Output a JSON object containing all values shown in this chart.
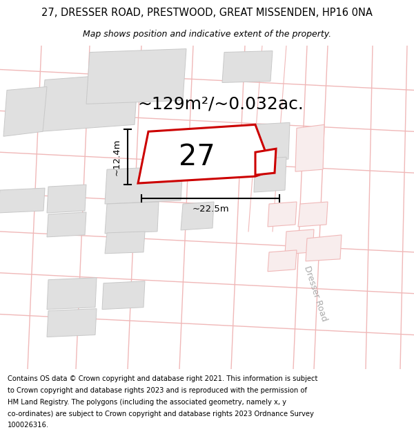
{
  "title": "27, DRESSER ROAD, PRESTWOOD, GREAT MISSENDEN, HP16 0NA",
  "subtitle": "Map shows position and indicative extent of the property.",
  "area_text": "~129m²/~0.032ac.",
  "width_label": "~22.5m",
  "height_label": "~12.4m",
  "label_number": "27",
  "road_label": "Dresser Road",
  "footer_lines": [
    "Contains OS data © Crown copyright and database right 2021. This information is subject",
    "to Crown copyright and database rights 2023 and is reproduced with the permission of",
    "HM Land Registry. The polygons (including the associated geometry, namely x, y",
    "co-ordinates) are subject to Crown copyright and database rights 2023 Ordnance Survey",
    "100026316."
  ],
  "bg_color": "#f7f7f7",
  "property_fill": "#ffffff",
  "property_edge": "#cc0000",
  "road_color": "#f0b8b8",
  "block_fill": "#e0e0e0",
  "block_edge": "#c8c8c8",
  "title_fontsize": 10.5,
  "subtitle_fontsize": 9,
  "area_fontsize": 18,
  "label_fontsize": 30,
  "dim_fontsize": 9.5,
  "footer_fontsize": 7.2,
  "road_label_fontsize": 9
}
